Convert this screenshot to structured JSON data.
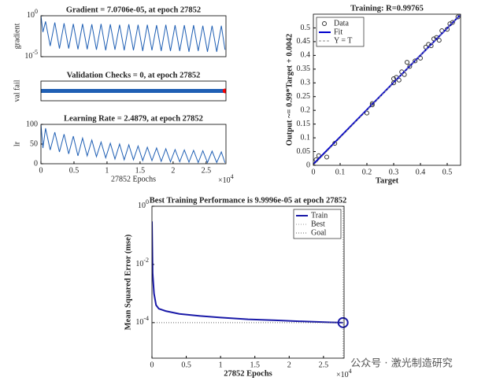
{
  "chart_data": [
    {
      "type": "line",
      "title": "Gradient = 7.0706e-05, at epoch 27852",
      "ylabel": "gradient",
      "yscale": "log",
      "xlim": [
        0,
        28000
      ],
      "ylim": [
        1e-05,
        1
      ],
      "yticks": [
        {
          "value": 1,
          "label": "10^0"
        },
        {
          "value": 1e-05,
          "label": "10^-5"
        }
      ],
      "series": [
        {
          "color": "#1f5fb4",
          "x": [
            0,
            300,
            700,
            1400,
            2100,
            2800,
            3500,
            4200,
            4900,
            5600,
            6300,
            7000,
            7700,
            8400,
            9100,
            9800,
            10500,
            11200,
            11900,
            12600,
            13300,
            14000,
            14700,
            15400,
            16100,
            16800,
            17500,
            18200,
            18900,
            19600,
            20300,
            21000,
            21700,
            22400,
            23100,
            23800,
            24500,
            25200,
            25900,
            26600,
            27300,
            27852
          ],
          "values": [
            1,
            0.01,
            0.2,
            0.0002,
            0.15,
            0.0001,
            0.12,
            0.0001,
            0.1,
            8e-05,
            0.1,
            8e-05,
            0.09,
            7e-05,
            0.1,
            6e-05,
            0.09,
            7e-05,
            0.08,
            6e-05,
            0.09,
            6e-05,
            0.08,
            5e-05,
            0.08,
            6e-05,
            0.07,
            5e-05,
            0.08,
            5e-05,
            0.07,
            5e-05,
            0.07,
            4e-05,
            0.07,
            5e-05,
            0.06,
            4e-05,
            0.06,
            4e-05,
            0.06,
            7.0706e-05
          ]
        }
      ]
    },
    {
      "type": "line",
      "title": "Validation Checks = 0, at epoch 27852",
      "ylabel": "val fail",
      "xlim": [
        0,
        28000
      ],
      "ylim": [
        -1,
        1
      ],
      "series": [
        {
          "color": "#1f5fb4",
          "width": 5,
          "x": [
            0,
            27852
          ],
          "values": [
            0,
            0
          ]
        },
        {
          "color": "#ff0000",
          "marker": "o",
          "x": [
            27852
          ],
          "values": [
            0
          ]
        }
      ]
    },
    {
      "type": "line",
      "title": "Learning Rate = 2.4879, at epoch 27852",
      "ylabel": "lr",
      "xlabel": "27852 Epochs",
      "x_exponent": "×10^4",
      "xlim": [
        0,
        28000
      ],
      "ylim": [
        0,
        100
      ],
      "yticks": [
        0,
        50,
        100
      ],
      "xticks": [
        0,
        {
          "value": 5000,
          "label": "0.5"
        },
        {
          "value": 10000,
          "label": "1"
        },
        {
          "value": 15000,
          "label": "1.5"
        },
        {
          "value": 20000,
          "label": "2"
        },
        {
          "value": 25000,
          "label": "2.5"
        }
      ],
      "series": [
        {
          "color": "#1f5fb4",
          "x": [
            0,
            300,
            700,
            1400,
            2100,
            2800,
            3500,
            4200,
            4900,
            5600,
            6300,
            7000,
            7700,
            8400,
            9100,
            9800,
            10500,
            11200,
            11900,
            12600,
            13300,
            14000,
            14700,
            15400,
            16100,
            16800,
            17500,
            18200,
            18900,
            19600,
            20300,
            21000,
            21700,
            22400,
            23100,
            23800,
            24500,
            25200,
            25900,
            26600,
            27300,
            27852
          ],
          "values": [
            100,
            40,
            90,
            35,
            80,
            30,
            75,
            25,
            70,
            20,
            65,
            20,
            60,
            18,
            55,
            15,
            52,
            12,
            50,
            10,
            48,
            10,
            45,
            8,
            42,
            8,
            40,
            6,
            38,
            5,
            36,
            5,
            35,
            4,
            34,
            3,
            33,
            3,
            32,
            3,
            30,
            2.4879
          ]
        }
      ]
    },
    {
      "type": "scatter",
      "title": "Training: R=0.99765",
      "xlabel": "Target",
      "ylabel": "Output ~= 0.99*Target + 0.0042",
      "legend": "upper left",
      "xlim": [
        0,
        0.55
      ],
      "ylim": [
        0,
        0.55
      ],
      "xticks": [
        0,
        0.1,
        0.2,
        0.3,
        0.4,
        0.5
      ],
      "yticks": [
        0,
        0.05,
        0.1,
        0.15,
        0.2,
        0.25,
        0.3,
        0.35,
        0.4,
        0.45,
        0.5
      ],
      "series": [
        {
          "name": "Data",
          "color": "#333333",
          "marker": "o",
          "x": [
            0.01,
            0.02,
            0.05,
            0.08,
            0.2,
            0.22,
            0.22,
            0.3,
            0.3,
            0.31,
            0.32,
            0.33,
            0.34,
            0.35,
            0.36,
            0.38,
            0.4,
            0.42,
            0.43,
            0.44,
            0.45,
            0.46,
            0.47,
            0.48,
            0.5,
            0.51,
            0.52,
            0.54
          ],
          "values": [
            0.02,
            0.035,
            0.03,
            0.08,
            0.19,
            0.22,
            0.225,
            0.3,
            0.315,
            0.32,
            0.31,
            0.34,
            0.33,
            0.375,
            0.36,
            0.38,
            0.39,
            0.43,
            0.44,
            0.435,
            0.46,
            0.465,
            0.455,
            0.49,
            0.495,
            0.515,
            0.52,
            0.54
          ]
        },
        {
          "name": "Fit",
          "color": "#0000cc",
          "width": 2,
          "x": [
            0,
            0.55
          ],
          "values": [
            0.0042,
            0.5487
          ]
        },
        {
          "name": "Y = T",
          "color": "#888888",
          "dash": "3,2",
          "x": [
            0,
            0.55
          ],
          "values": [
            0,
            0.55
          ]
        }
      ]
    },
    {
      "type": "line",
      "title": "Best Training Performance is 9.9996e-05 at epoch 27852",
      "xlabel": "27852 Epochs",
      "ylabel": "Mean Squared Error  (mse)",
      "x_exponent": "×10^4",
      "legend": "upper right",
      "yscale": "log",
      "xlim": [
        0,
        28000
      ],
      "ylim": [
        6e-06,
        1
      ],
      "xticks": [
        0,
        {
          "value": 5000,
          "label": "0.5"
        },
        {
          "value": 10000,
          "label": "1"
        },
        {
          "value": 15000,
          "label": "1.5"
        },
        {
          "value": 20000,
          "label": "2"
        },
        {
          "value": 25000,
          "label": "2.5"
        }
      ],
      "yticks": [
        {
          "value": 1,
          "label": "10^0"
        },
        {
          "value": 0.01,
          "label": "10^-2"
        },
        {
          "value": 0.0001,
          "label": "10^-4"
        }
      ],
      "best_point": {
        "x": 27852,
        "y": 9.9996e-05
      },
      "series": [
        {
          "name": "Train",
          "color": "#1a1aa8",
          "width": 2,
          "x": [
            0,
            100,
            300,
            600,
            1000,
            2000,
            4000,
            7000,
            10000,
            14000,
            18000,
            22000,
            26000,
            27852
          ],
          "values": [
            0.3,
            0.005,
            0.001,
            0.0004,
            0.0003,
            0.00025,
            0.0002,
            0.00017,
            0.00015,
            0.00013,
            0.00012,
            0.00011,
            0.000102,
            9.9996e-05
          ]
        },
        {
          "name": "Best",
          "color": "#999999",
          "dash": "1,2",
          "x": [
            27852,
            27852
          ],
          "values": [
            6e-06,
            1
          ]
        },
        {
          "name": "Goal",
          "color": "#666666",
          "dash": "1,2",
          "x": [
            0,
            27852
          ],
          "values": [
            0.0001,
            0.0001
          ]
        }
      ]
    }
  ],
  "watermark": "公众号 · 激光制造研究"
}
